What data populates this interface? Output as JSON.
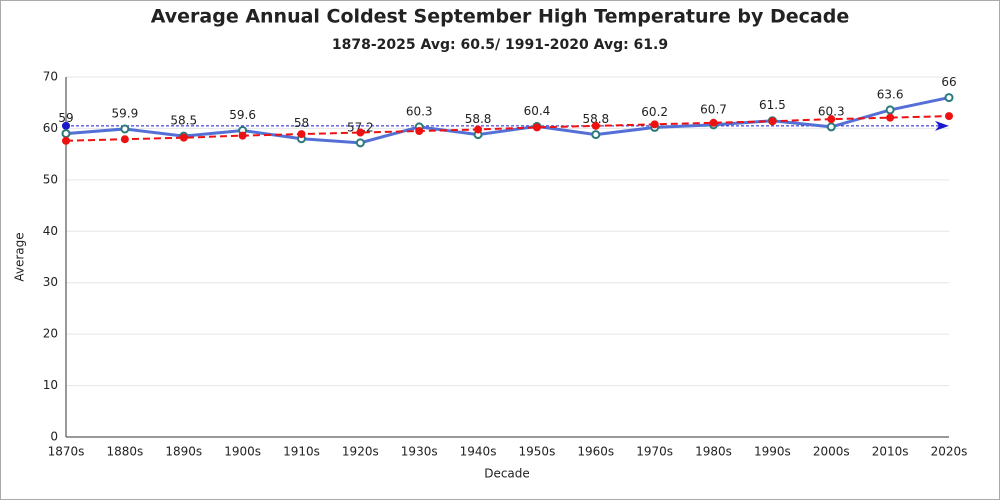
{
  "chart_data": {
    "type": "line",
    "title": "Average Annual Coldest September High Temperature by Decade",
    "subtitle": "1878-2025 Avg: 60.5/ 1991-2020 Avg: 61.9",
    "x_label": "Decade",
    "y_label": "Average",
    "categories": [
      "1870s",
      "1880s",
      "1890s",
      "1900s",
      "1910s",
      "1920s",
      "1930s",
      "1940s",
      "1950s",
      "1960s",
      "1970s",
      "1980s",
      "1990s",
      "2000s",
      "2010s",
      "2020s"
    ],
    "series": [
      {
        "color": "#5470d6",
        "values": [
          59,
          59.9,
          58.5,
          59.6,
          58,
          57.2,
          60.3,
          58.8,
          60.4,
          58.8,
          60.2,
          60.7,
          61.5,
          60.3,
          63.6,
          66
        ],
        "labels": true
      },
      {
        "color": "#ee1111",
        "dashed": true,
        "values": [
          57.6,
          57.9,
          58.2,
          58.6,
          58.9,
          59.2,
          59.5,
          59.8,
          60.2,
          60.5,
          60.8,
          61.1,
          61.4,
          61.8,
          62.1,
          62.4
        ]
      }
    ],
    "average_line": {
      "value": 60.5,
      "color": "#1a1acc"
    },
    "ylim": [
      0,
      70
    ],
    "yticks": [
      0,
      10,
      20,
      30,
      40,
      50,
      60,
      70
    ],
    "grid": true
  }
}
